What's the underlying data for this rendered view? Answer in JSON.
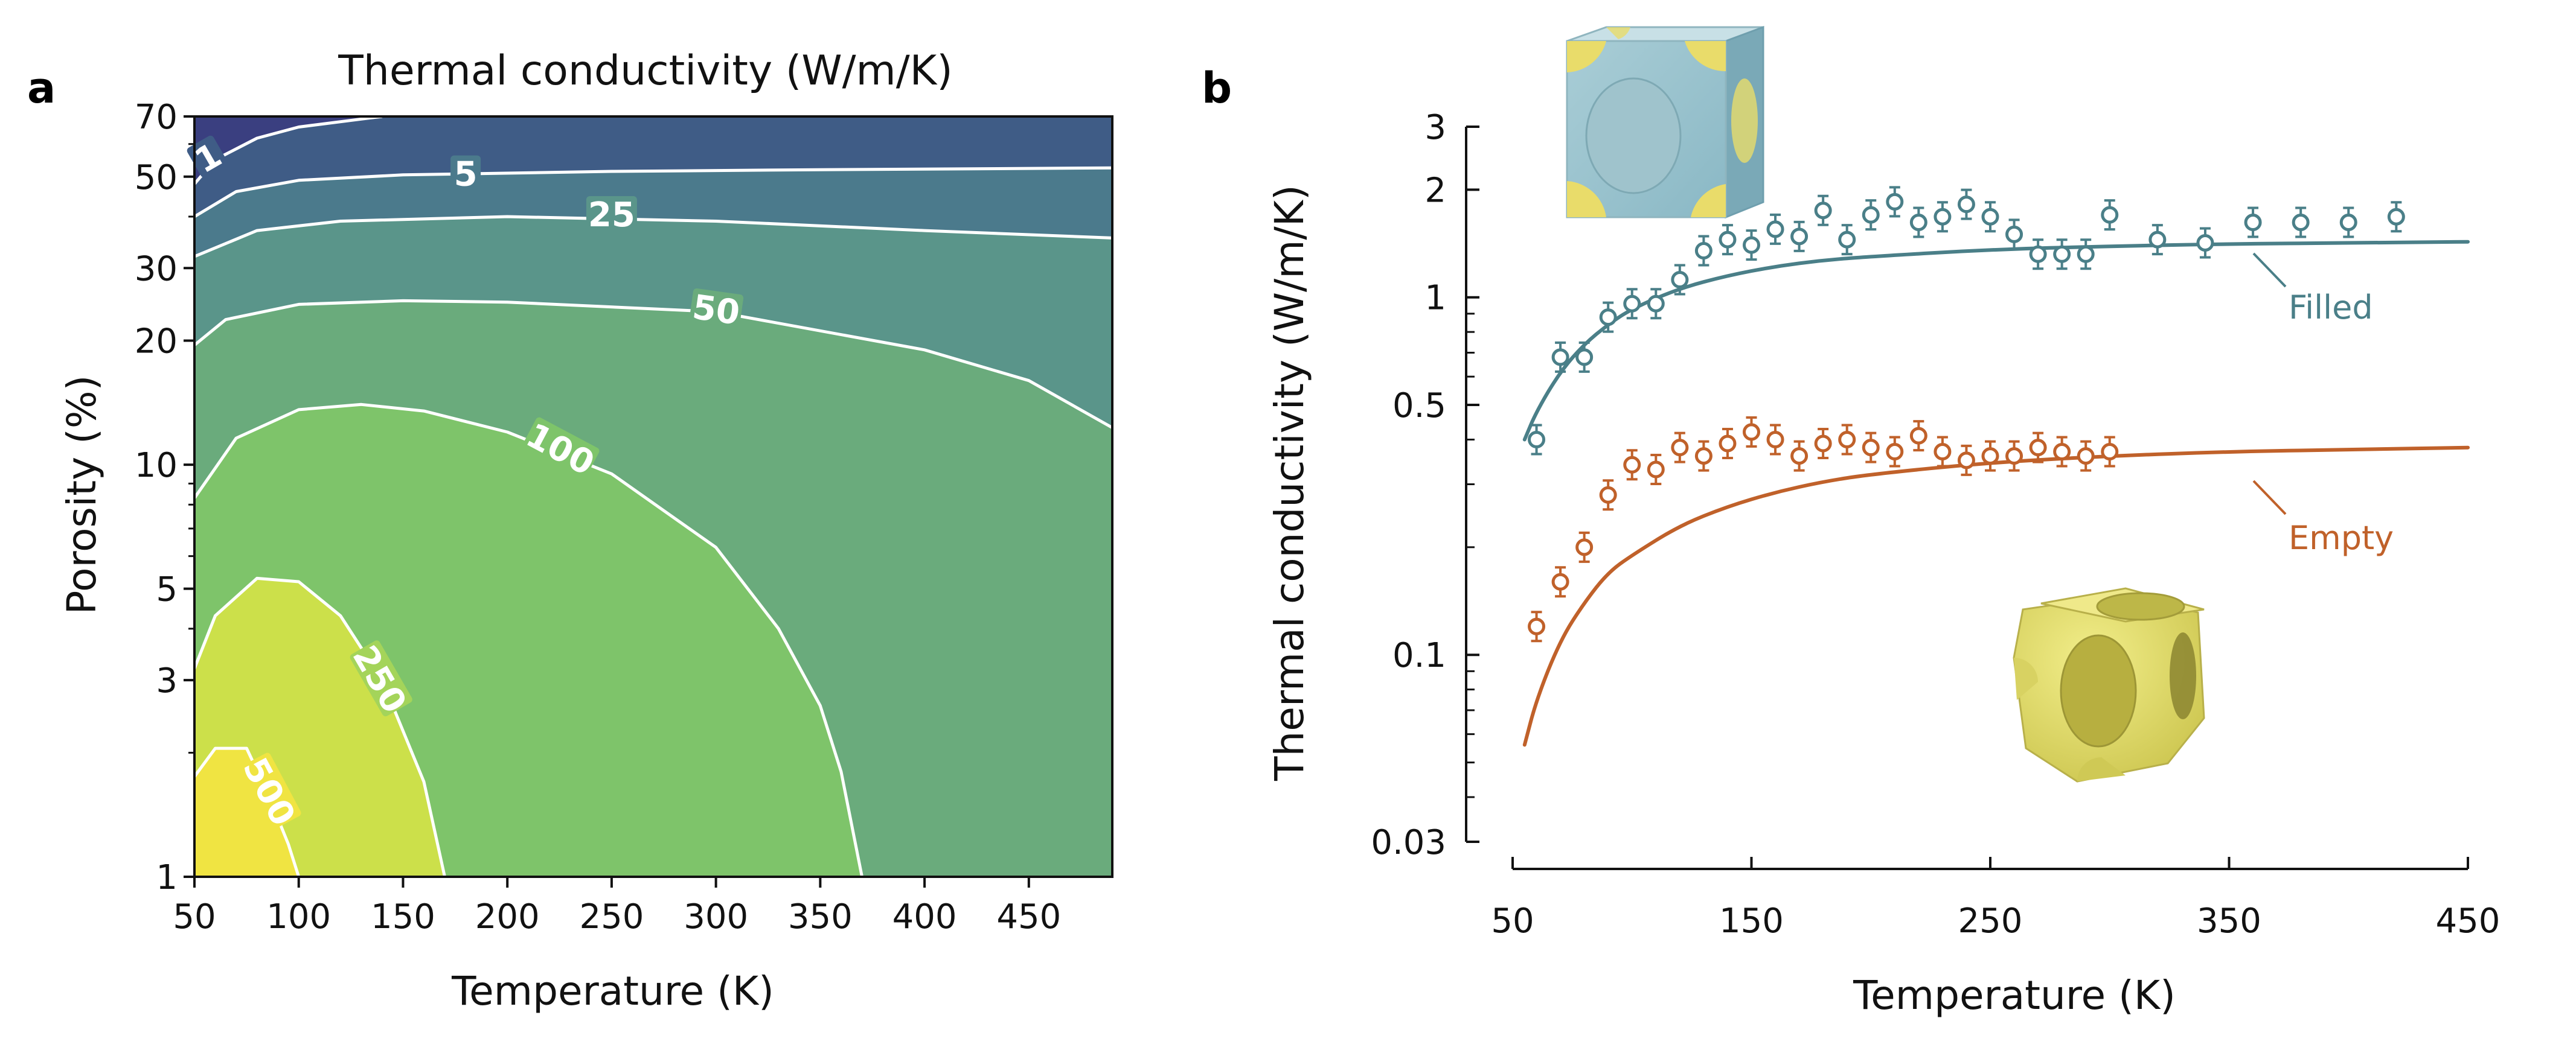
{
  "chart_data": [
    {
      "type": "heatmap",
      "panel_label": "a",
      "title": "Thermal conductivity (W/m/K)",
      "xlabel": "Temperature (K)",
      "ylabel": "Porosity (%)",
      "xlim": [
        50,
        490
      ],
      "ylim": [
        1,
        70
      ],
      "yscale": "log",
      "xticks": [
        50,
        100,
        150,
        200,
        250,
        300,
        350,
        400,
        450
      ],
      "yticks": [
        1,
        3,
        5,
        10,
        20,
        30,
        50,
        70
      ],
      "contour_levels": [
        1,
        5,
        25,
        50,
        100,
        250,
        500
      ],
      "contour_labels": [
        "1",
        "5",
        "25",
        "50",
        "100",
        "250",
        "500"
      ],
      "contours": [
        {
          "level": 1,
          "points": [
            [
              50,
              48
            ],
            [
              60,
              55
            ],
            [
              80,
              62
            ],
            [
              100,
              66
            ],
            [
              130,
              69
            ],
            [
              140,
              70
            ]
          ]
        },
        {
          "level": 5,
          "points": [
            [
              50,
              40
            ],
            [
              70,
              46
            ],
            [
              100,
              49
            ],
            [
              150,
              50.5
            ],
            [
              250,
              51.5
            ],
            [
              350,
              52
            ],
            [
              490,
              52.5
            ]
          ]
        },
        {
          "level": 25,
          "points": [
            [
              50,
              32
            ],
            [
              80,
              37
            ],
            [
              120,
              39
            ],
            [
              200,
              40
            ],
            [
              300,
              39
            ],
            [
              400,
              37
            ],
            [
              490,
              35.5
            ]
          ]
        },
        {
          "level": 50,
          "points": [
            [
              50,
              19.5
            ],
            [
              65,
              22.5
            ],
            [
              100,
              24.5
            ],
            [
              150,
              25
            ],
            [
              200,
              24.8
            ],
            [
              300,
              23.5
            ],
            [
              400,
              19
            ],
            [
              450,
              16
            ],
            [
              490,
              12.3
            ]
          ]
        },
        {
          "level": 100,
          "points": [
            [
              50,
              8.3
            ],
            [
              70,
              11.6
            ],
            [
              100,
              13.6
            ],
            [
              130,
              14
            ],
            [
              160,
              13.5
            ],
            [
              200,
              12
            ],
            [
              250,
              9.5
            ],
            [
              300,
              6.3
            ],
            [
              330,
              4
            ],
            [
              350,
              2.6
            ],
            [
              360,
              1.8
            ],
            [
              370,
              1.0
            ]
          ]
        },
        {
          "level": 250,
          "points": [
            [
              50,
              3.2
            ],
            [
              60,
              4.3
            ],
            [
              80,
              5.3
            ],
            [
              100,
              5.2
            ],
            [
              120,
              4.3
            ],
            [
              140,
              3
            ],
            [
              160,
              1.7
            ],
            [
              170,
              1.0
            ]
          ]
        },
        {
          "level": 500,
          "points": [
            [
              50,
              1.75
            ],
            [
              60,
              2.05
            ],
            [
              75,
              2.05
            ],
            [
              85,
              1.6
            ],
            [
              95,
              1.2
            ],
            [
              100,
              1.0
            ]
          ]
        }
      ],
      "colormap": [
        "#f0e442",
        "#cce04a",
        "#a4d45a",
        "#7ec46a",
        "#6aab7c",
        "#5a958a",
        "#4b7a8c",
        "#3f5c86",
        "#3a3f80"
      ]
    },
    {
      "type": "scatter",
      "panel_label": "b",
      "xlabel": "Temperature (K)",
      "ylabel": "Thermal conductivity (W/m/K)",
      "xlim": [
        50,
        450
      ],
      "ylim": [
        0.03,
        3
      ],
      "yscale": "log",
      "xticks": [
        50,
        150,
        250,
        350,
        450
      ],
      "yticks": [
        0.03,
        0.1,
        0.5,
        1,
        2,
        3
      ],
      "ytick_labels": [
        "0.03",
        "0.1",
        "0.5",
        "1",
        "2",
        "3"
      ],
      "series": [
        {
          "name": "Filled",
          "color": "#4a7f88",
          "points_x": [
            60,
            70,
            80,
            90,
            100,
            110,
            120,
            130,
            140,
            150,
            160,
            170,
            180,
            190,
            200,
            210,
            220,
            230,
            240,
            250,
            260,
            270,
            280,
            290,
            300,
            320,
            340,
            360,
            380,
            400,
            420
          ],
          "points_y": [
            0.4,
            0.68,
            0.68,
            0.88,
            0.96,
            0.96,
            1.12,
            1.35,
            1.45,
            1.4,
            1.55,
            1.48,
            1.75,
            1.45,
            1.7,
            1.85,
            1.62,
            1.68,
            1.82,
            1.68,
            1.5,
            1.32,
            1.32,
            1.32,
            1.7,
            1.45,
            1.42,
            1.62,
            1.62,
            1.62,
            1.68
          ],
          "model_x": [
            55,
            60,
            70,
            80,
            90,
            100,
            120,
            140,
            160,
            180,
            200,
            250,
            300,
            350,
            400,
            450
          ],
          "model_y": [
            0.4,
            0.48,
            0.62,
            0.74,
            0.84,
            0.93,
            1.06,
            1.15,
            1.22,
            1.27,
            1.3,
            1.36,
            1.39,
            1.41,
            1.42,
            1.43
          ]
        },
        {
          "name": "Empty",
          "color": "#c0612a",
          "points_x": [
            60,
            70,
            80,
            90,
            100,
            110,
            120,
            130,
            140,
            150,
            160,
            170,
            180,
            190,
            200,
            210,
            220,
            230,
            240,
            250,
            260,
            270,
            280,
            290,
            300
          ],
          "points_y": [
            0.12,
            0.16,
            0.2,
            0.28,
            0.34,
            0.33,
            0.38,
            0.36,
            0.39,
            0.42,
            0.4,
            0.36,
            0.39,
            0.4,
            0.38,
            0.37,
            0.41,
            0.37,
            0.35,
            0.36,
            0.36,
            0.38,
            0.37,
            0.36,
            0.37
          ],
          "model_x": [
            55,
            60,
            70,
            80,
            90,
            100,
            120,
            140,
            160,
            180,
            200,
            250,
            300,
            350,
            400,
            450
          ],
          "model_y": [
            0.056,
            0.075,
            0.11,
            0.14,
            0.17,
            0.19,
            0.23,
            0.26,
            0.285,
            0.305,
            0.32,
            0.345,
            0.36,
            0.37,
            0.375,
            0.38
          ]
        }
      ]
    }
  ]
}
